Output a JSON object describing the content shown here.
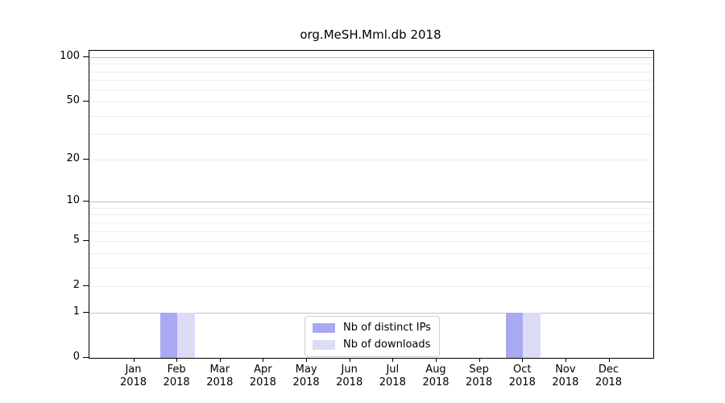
{
  "chart_data": {
    "type": "bar",
    "title": "org.MeSH.Mml.db 2018",
    "categories": [
      "Jan",
      "Feb",
      "Mar",
      "Apr",
      "May",
      "Jun",
      "Jul",
      "Aug",
      "Sep",
      "Oct",
      "Nov",
      "Dec"
    ],
    "category_year": "2018",
    "series": [
      {
        "name": "Nb of distinct IPs",
        "color": "#a9a9f1",
        "values": [
          0,
          1,
          0,
          0,
          0,
          0,
          0,
          0,
          0,
          1,
          0,
          0
        ]
      },
      {
        "name": "Nb of downloads",
        "color": "#dcdcf7",
        "values": [
          0,
          1,
          0,
          0,
          0,
          0,
          0,
          0,
          0,
          1,
          0,
          0
        ]
      }
    ],
    "xlabel": "",
    "ylabel": "",
    "yscale": "log1p",
    "ylim": [
      0,
      110
    ],
    "yticks": [
      0,
      1,
      2,
      5,
      10,
      20,
      50,
      100
    ],
    "grid_major": [
      1,
      10,
      100
    ],
    "grid_minor": [
      2,
      3,
      4,
      5,
      6,
      7,
      8,
      9,
      20,
      30,
      40,
      50,
      60,
      70,
      80,
      90
    ],
    "grid": "on",
    "legend_position": "bottom-center",
    "colors": {
      "spine": "#000000",
      "grid_major": "#c2c2c2",
      "grid_minor": "#ededed",
      "text": "#000000",
      "background": "#ffffff"
    }
  }
}
